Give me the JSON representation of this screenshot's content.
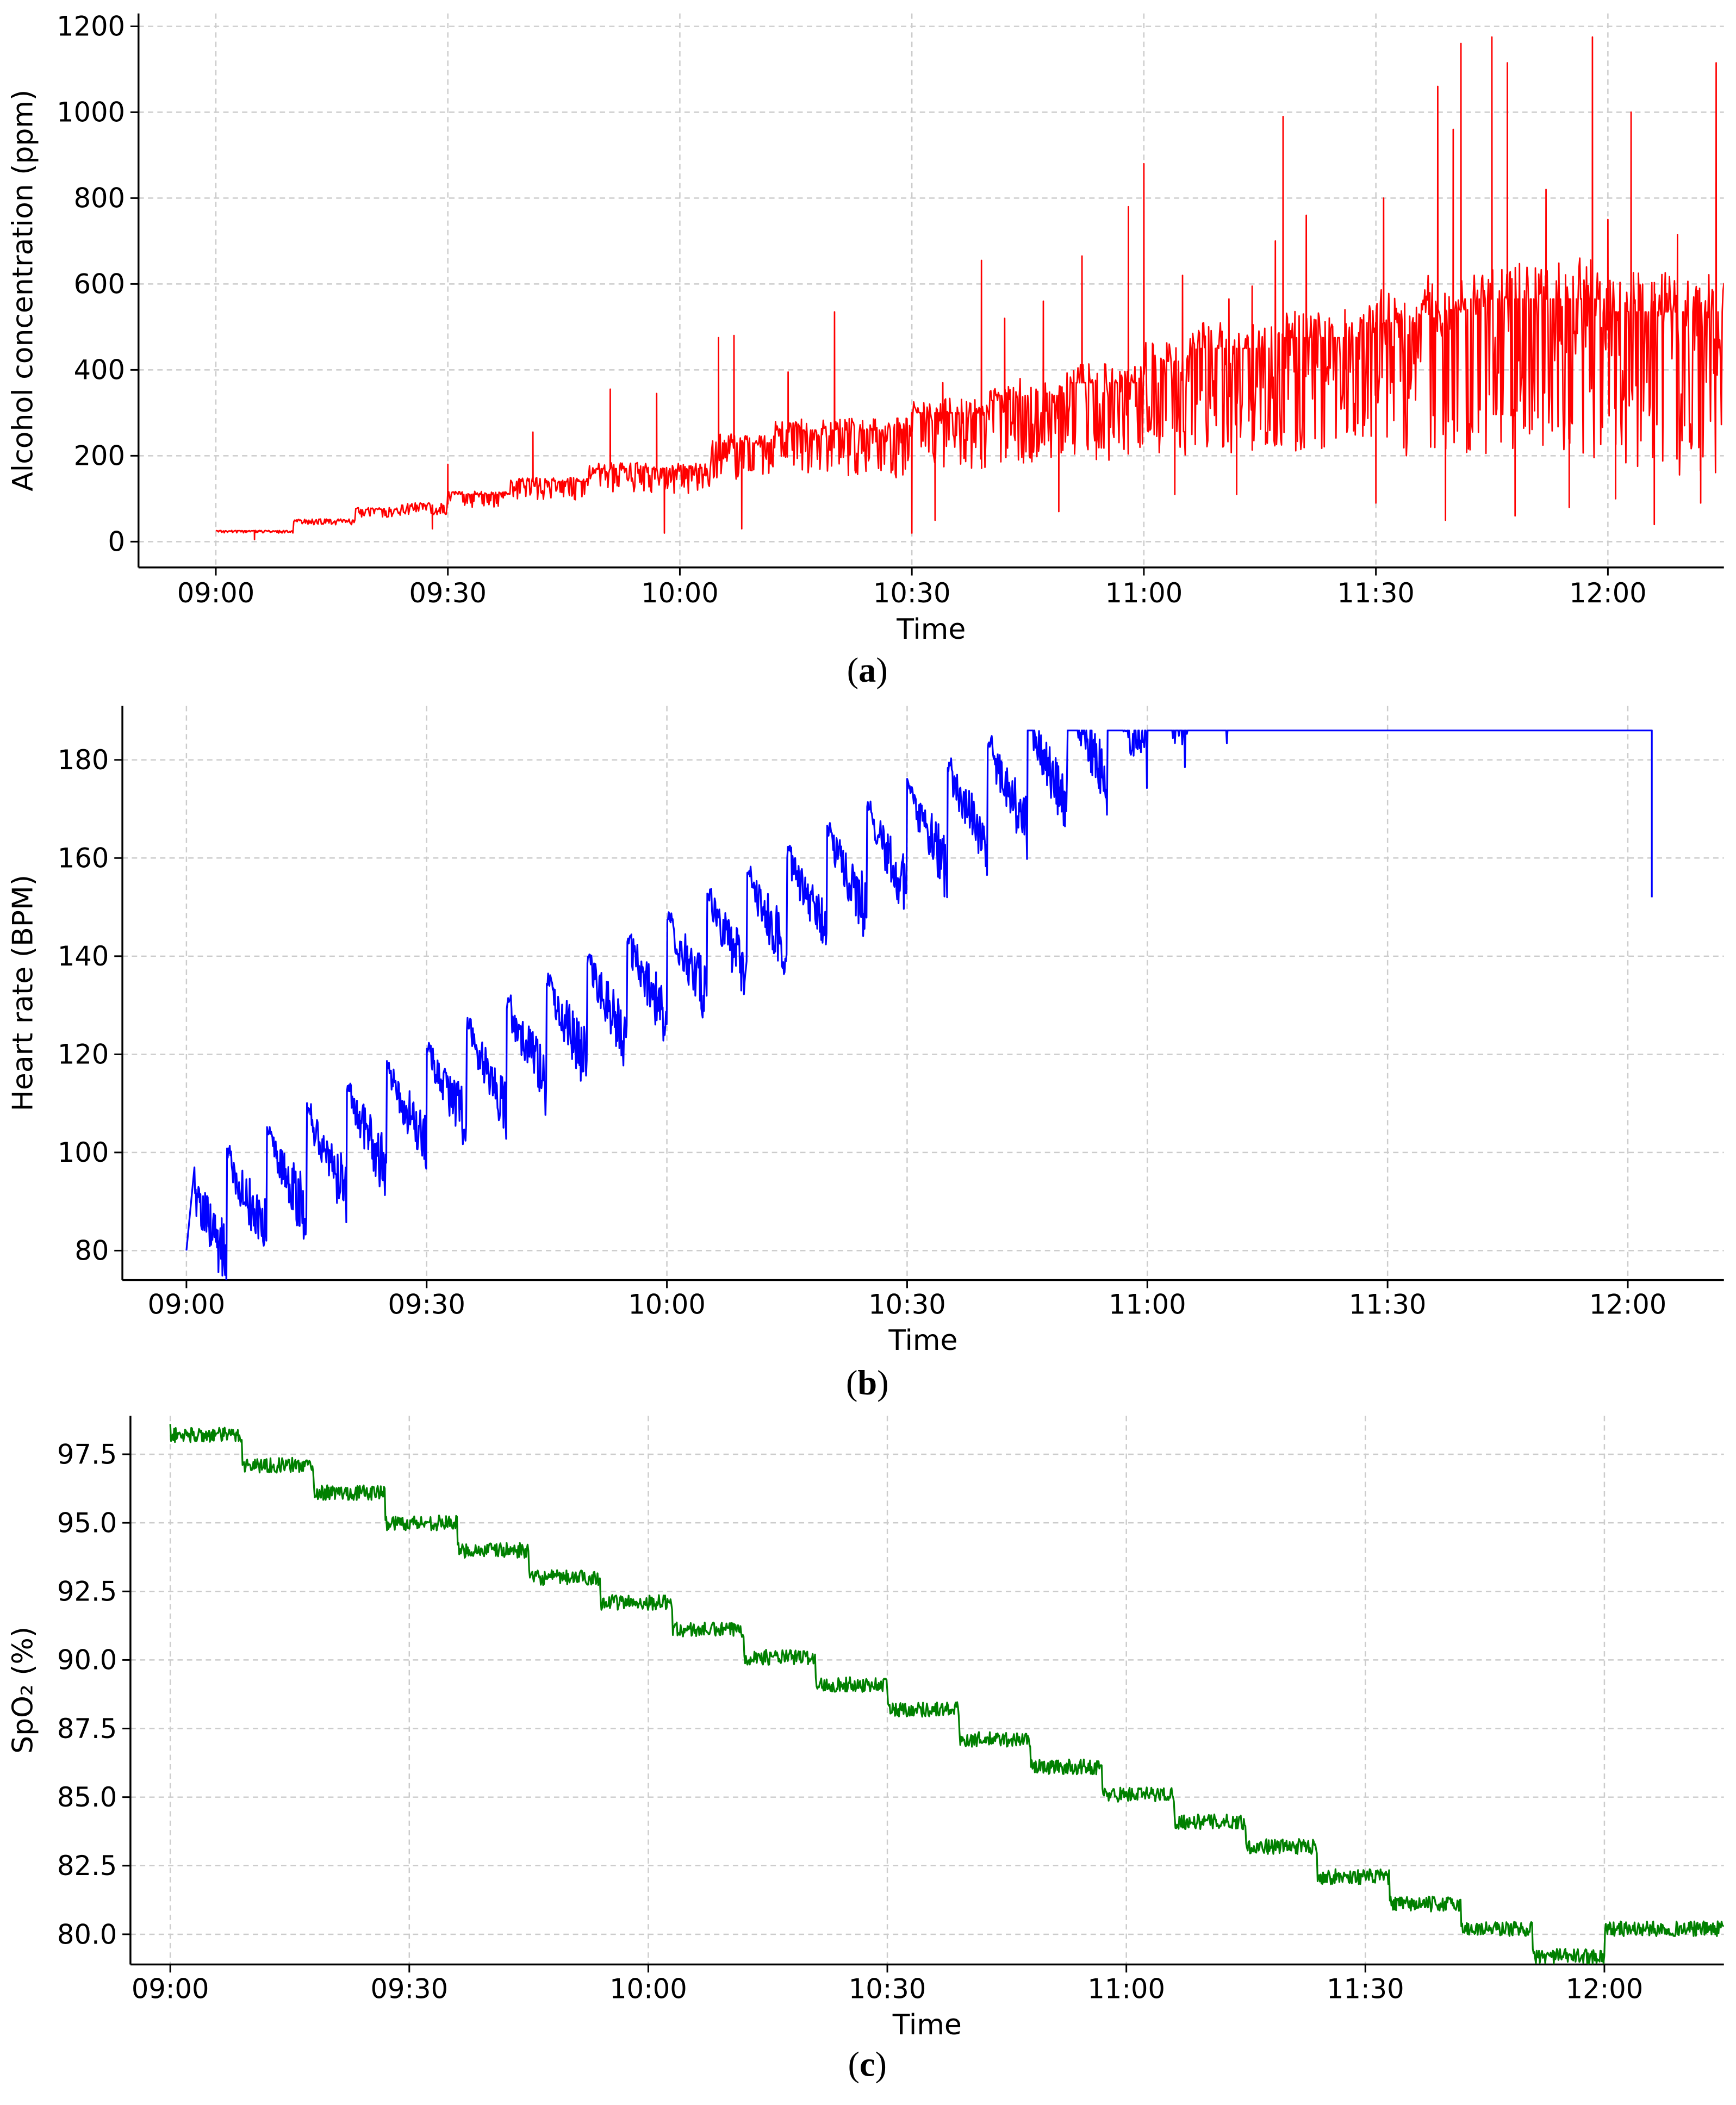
{
  "colors": {
    "alcohol": "#ff0000",
    "heart": "#0000ff",
    "spo2": "#008000",
    "grid": "#cccccc",
    "axis": "#000000"
  },
  "chart_data": [
    {
      "panel": "a",
      "caption": {
        "open": "(",
        "letter": "a",
        "close": ")"
      },
      "type": "line",
      "title": "",
      "xlabel": "Time",
      "ylabel": "Alcohol concentration (ppm)",
      "xlim": [
        "08:50",
        "12:15"
      ],
      "ylim": [
        -60,
        1230
      ],
      "xticks": [
        "09:00",
        "09:30",
        "10:00",
        "10:30",
        "11:00",
        "11:30",
        "12:00"
      ],
      "yticks": [
        "0",
        "200",
        "400",
        "600",
        "800",
        "1000",
        "1200"
      ],
      "grid": true,
      "series": [
        {
          "color": "#ff0000",
          "style": "noisy-staircase",
          "x_start": "09:00",
          "x_end": "12:15",
          "step_minutes": 5,
          "baseline": [
            [
              "09:00",
              25
            ],
            [
              "09:10",
              50
            ],
            [
              "09:18",
              75
            ],
            [
              "09:24",
              85
            ],
            [
              "09:30",
              110
            ],
            [
              "09:38",
              140
            ],
            [
              "09:48",
              170
            ],
            [
              "10:04",
              230
            ],
            [
              "10:12",
              260
            ],
            [
              "10:30",
              300
            ],
            [
              "10:40",
              340
            ],
            [
              "10:50",
              370
            ],
            [
              "11:00",
              420
            ],
            [
              "11:06",
              450
            ],
            [
              "11:18",
              475
            ],
            [
              "11:28",
              510
            ],
            [
              "11:36",
              540
            ],
            [
              "11:42",
              565
            ],
            [
              "12:00",
              535
            ],
            [
              "12:15",
              535
            ]
          ],
          "spikes": [
            [
              "09:30",
              180
            ],
            [
              "09:41",
              255
            ],
            [
              "09:51",
              355
            ],
            [
              "09:57",
              345
            ],
            [
              "10:05",
              475
            ],
            [
              "10:07",
              480
            ],
            [
              "10:14",
              395
            ],
            [
              "10:20",
              535
            ],
            [
              "10:34",
              370
            ],
            [
              "10:39",
              655
            ],
            [
              "10:42",
              520
            ],
            [
              "10:47",
              560
            ],
            [
              "10:52",
              665
            ],
            [
              "10:58",
              780
            ],
            [
              "11:00",
              880
            ],
            [
              "11:05",
              620
            ],
            [
              "11:11",
              565
            ],
            [
              "11:14",
              595
            ],
            [
              "11:17",
              700
            ],
            [
              "11:18",
              990
            ],
            [
              "11:21",
              760
            ],
            [
              "11:26",
              540
            ],
            [
              "11:31",
              800
            ],
            [
              "11:38",
              1060
            ],
            [
              "11:40",
              960
            ],
            [
              "11:41",
              1160
            ],
            [
              "11:45",
              1175
            ],
            [
              "11:47",
              1115
            ],
            [
              "11:52",
              820
            ],
            [
              "11:58",
              1175
            ],
            [
              "12:00",
              750
            ],
            [
              "12:03",
              1000
            ],
            [
              "12:09",
              715
            ],
            [
              "12:14",
              1115
            ]
          ],
          "dips": [
            [
              "09:05",
              5
            ],
            [
              "09:28",
              30
            ],
            [
              "09:58",
              20
            ],
            [
              "10:08",
              30
            ],
            [
              "10:30",
              20
            ],
            [
              "10:33",
              50
            ],
            [
              "10:49",
              70
            ],
            [
              "11:04",
              110
            ],
            [
              "11:12",
              110
            ],
            [
              "11:30",
              90
            ],
            [
              "11:39",
              50
            ],
            [
              "11:48",
              60
            ],
            [
              "11:55",
              80
            ],
            [
              "12:01",
              100
            ],
            [
              "12:06",
              40
            ],
            [
              "12:12",
              90
            ]
          ]
        }
      ]
    },
    {
      "panel": "b",
      "caption": {
        "open": "(",
        "letter": "b",
        "close": ")"
      },
      "type": "line",
      "title": "",
      "xlabel": "Time",
      "ylabel": "Heart rate (BPM)",
      "xlim": [
        "08:52",
        "12:12"
      ],
      "ylim": [
        74,
        191
      ],
      "xticks": [
        "09:00",
        "09:30",
        "10:00",
        "10:30",
        "11:00",
        "11:30",
        "12:00"
      ],
      "yticks": [
        "80",
        "100",
        "120",
        "140",
        "160",
        "180"
      ],
      "grid": true,
      "series": [
        {
          "color": "#0000ff",
          "style": "sawtooth-noise",
          "x_start": "09:00",
          "x_end": "12:03",
          "segment_minutes": 5,
          "segment_step_bpm": 4.4,
          "first_segment_top": 97,
          "segment_depth_bpm": 15,
          "start_value": 80,
          "end_value": 152
        }
      ]
    },
    {
      "panel": "c",
      "caption": {
        "open": "(",
        "letter": "c",
        "close": ")"
      },
      "type": "line",
      "title": "",
      "xlabel": "Time",
      "ylabel": "SpO₂ (%)",
      "xlim": [
        "08:55",
        "12:15"
      ],
      "ylim": [
        78.9,
        98.9
      ],
      "xticks": [
        "09:00",
        "09:30",
        "10:00",
        "10:30",
        "11:00",
        "11:30",
        "12:00"
      ],
      "yticks": [
        "80.0",
        "82.5",
        "85.0",
        "87.5",
        "90.0",
        "92.5",
        "95.0",
        "97.5"
      ],
      "grid": true,
      "series": [
        {
          "color": "#008000",
          "style": "descending-staircase",
          "x_start": "09:00",
          "x_end": "12:15",
          "levels": [
            [
              "09:00",
              98.2
            ],
            [
              "09:09",
              97.1
            ],
            [
              "09:18",
              96.1
            ],
            [
              "09:27",
              95.0
            ],
            [
              "09:36",
              94.0
            ],
            [
              "09:45",
              93.0
            ],
            [
              "09:54",
              92.1
            ],
            [
              "10:03",
              91.1
            ],
            [
              "10:12",
              90.1
            ],
            [
              "10:21",
              89.1
            ],
            [
              "10:30",
              88.2
            ],
            [
              "10:39",
              87.1
            ],
            [
              "10:48",
              86.1
            ],
            [
              "10:57",
              85.1
            ],
            [
              "11:06",
              84.1
            ],
            [
              "11:15",
              83.2
            ],
            [
              "11:24",
              82.1
            ],
            [
              "11:33",
              81.1
            ],
            [
              "11:42",
              80.2
            ],
            [
              "11:51",
              79.2
            ],
            [
              "12:00",
              80.2
            ]
          ]
        }
      ]
    }
  ]
}
